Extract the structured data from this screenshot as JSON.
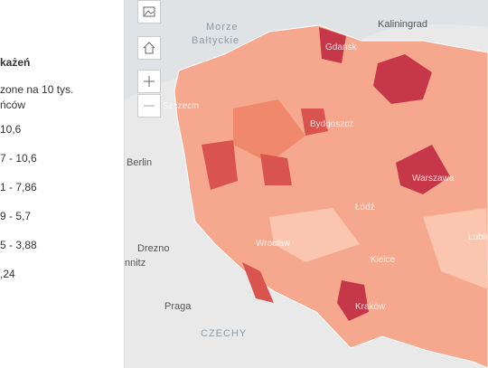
{
  "legend": {
    "title": "każeń",
    "subtitle_lines": [
      "zone na 10 tys.",
      "ńców"
    ],
    "items": [
      "10,6",
      "7 - 10,6",
      "1 - 7,86",
      "9 - 5,7",
      "5 - 3,88",
      ",24"
    ]
  },
  "map_labels": {
    "sea_1": "Morze",
    "sea_2": "Bałtyckie",
    "kaliningrad": "Kaliningrad",
    "gdansk": "Gdańsk",
    "szczecin": "Szczecin",
    "bydgoszcz": "Bydgoszcz",
    "berlin": "Berlin",
    "warszawa": "Warszawa",
    "lodz": "Łódź",
    "wroclaw": "Wrocław",
    "drezno": "Drezno",
    "chemnitz": "nnitz",
    "kielce": "Kielce",
    "lublin": "Lubli",
    "krakow": "Kraków",
    "praga": "Praga",
    "czechy": "CZECHY"
  }
}
